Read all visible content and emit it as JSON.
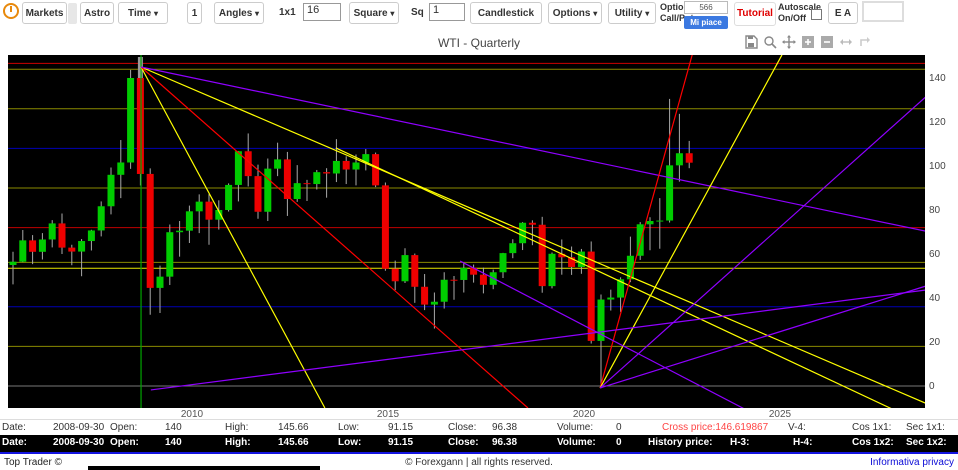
{
  "toolbar": {
    "markets": "Markets",
    "astro": "Astro",
    "time": "Time",
    "one": "1",
    "angles": "Angles",
    "one_by_one": "1x1",
    "square_input": "16",
    "square": "Square",
    "sq": "Sq",
    "sq_input": "1",
    "candlestick": "Candlestick",
    "options": "Options",
    "utility": "Utility",
    "option_page_line1": "Option Page",
    "option_page_line2": "Call/Put",
    "like_count": "566",
    "like_label": "Mi piace",
    "tutorial": "Tutorial",
    "autoscale_line1": "Autoscale",
    "autoscale_line2": "On/Off",
    "ea": "E A",
    "dropdown_arrow": "▾"
  },
  "titlebar": {
    "title": "WTI - Quarterly"
  },
  "modebar": {
    "icons": [
      "save",
      "zoom",
      "pan",
      "zoom-in",
      "zoom-out",
      "autoscale",
      "reset-axes"
    ]
  },
  "chart_data": {
    "type": "candlestick",
    "title": "WTI - Quarterly",
    "symbol": "WTI",
    "timeframe": "Quarterly",
    "background": "#000000",
    "up_color": "#00cc00",
    "down_color": "#ee0000",
    "wick_color": "#aaaaaa",
    "x_ticks": [
      2010,
      2015,
      2020,
      2025
    ],
    "y_ticks": [
      0,
      20,
      40,
      60,
      80,
      100,
      120,
      140
    ],
    "ylim": [
      -10,
      150.5
    ],
    "xlim_years": [
      2005.3,
      2028.7
    ],
    "selected": {
      "date": "2008-09-30",
      "open": 140,
      "high": 145.66,
      "low": 91.15,
      "close": 96.38,
      "volume": 0,
      "index": 13
    },
    "candles": [
      [
        "2005-06-30",
        55.0,
        61.0,
        46.2,
        56.5
      ],
      [
        "2005-09-30",
        56.5,
        70.9,
        56.3,
        66.2
      ],
      [
        "2005-12-31",
        66.2,
        68.6,
        55.4,
        61.0
      ],
      [
        "2006-03-31",
        61.0,
        69.5,
        57.5,
        66.6
      ],
      [
        "2006-06-30",
        66.6,
        75.4,
        63.0,
        73.9
      ],
      [
        "2006-09-30",
        73.9,
        78.4,
        60.0,
        62.9
      ],
      [
        "2006-12-31",
        62.9,
        64.2,
        54.9,
        61.1
      ],
      [
        "2007-03-31",
        61.1,
        66.8,
        49.9,
        65.9
      ],
      [
        "2007-06-30",
        65.9,
        71.0,
        61.6,
        70.7
      ],
      [
        "2007-09-30",
        70.7,
        83.9,
        68.0,
        81.7
      ],
      [
        "2007-12-31",
        81.7,
        99.3,
        78.0,
        96.0
      ],
      [
        "2008-03-31",
        96.0,
        111.8,
        85.4,
        101.6
      ],
      [
        "2008-06-30",
        101.6,
        143.7,
        98.7,
        140.0
      ],
      [
        "2008-09-30",
        140.0,
        145.66,
        91.15,
        96.38
      ],
      [
        "2008-12-31",
        96.4,
        98.9,
        32.4,
        44.6
      ],
      [
        "2009-03-31",
        44.6,
        54.7,
        33.2,
        49.7
      ],
      [
        "2009-06-30",
        49.7,
        73.4,
        45.9,
        69.9
      ],
      [
        "2009-09-30",
        69.9,
        75.0,
        58.8,
        70.6
      ],
      [
        "2009-12-31",
        70.6,
        82.0,
        65.0,
        79.4
      ],
      [
        "2010-03-31",
        79.4,
        87.1,
        69.5,
        83.8
      ],
      [
        "2010-06-30",
        83.8,
        87.2,
        64.2,
        75.6
      ],
      [
        "2010-09-30",
        75.6,
        84.4,
        71.1,
        80.0
      ],
      [
        "2010-12-31",
        80.0,
        92.1,
        79.3,
        91.4
      ],
      [
        "2011-03-31",
        91.4,
        106.8,
        83.9,
        106.7
      ],
      [
        "2011-06-30",
        106.7,
        114.8,
        90.7,
        95.4
      ],
      [
        "2011-09-30",
        95.4,
        100.6,
        76.0,
        79.2
      ],
      [
        "2011-12-31",
        79.2,
        103.4,
        75.0,
        98.8
      ],
      [
        "2012-03-31",
        98.8,
        110.6,
        95.4,
        103.0
      ],
      [
        "2012-06-30",
        103.0,
        106.4,
        77.3,
        85.0
      ],
      [
        "2012-09-30",
        85.0,
        100.4,
        83.7,
        92.2
      ],
      [
        "2012-12-31",
        92.2,
        93.7,
        84.1,
        91.8
      ],
      [
        "2013-03-31",
        91.8,
        98.2,
        89.3,
        97.2
      ],
      [
        "2013-06-30",
        97.2,
        99.0,
        85.6,
        96.6
      ],
      [
        "2013-09-30",
        96.6,
        112.2,
        92.7,
        102.3
      ],
      [
        "2013-12-31",
        102.3,
        104.4,
        91.8,
        98.4
      ],
      [
        "2014-03-31",
        98.4,
        105.2,
        91.2,
        101.6
      ],
      [
        "2014-06-30",
        101.6,
        107.7,
        98.0,
        105.4
      ],
      [
        "2014-09-30",
        105.4,
        106.1,
        90.4,
        91.2
      ],
      [
        "2014-12-31",
        91.2,
        92.5,
        52.4,
        53.3
      ],
      [
        "2015-03-31",
        53.3,
        57.0,
        43.6,
        47.6
      ],
      [
        "2015-06-30",
        47.6,
        62.6,
        46.8,
        59.5
      ],
      [
        "2015-09-30",
        59.5,
        60.2,
        37.8,
        45.1
      ],
      [
        "2015-12-31",
        45.1,
        50.9,
        34.5,
        37.0
      ],
      [
        "2016-03-31",
        37.0,
        42.5,
        26.1,
        38.3
      ],
      [
        "2016-06-30",
        38.3,
        51.7,
        35.2,
        48.3
      ],
      [
        "2016-09-30",
        48.3,
        50.0,
        39.2,
        48.2
      ],
      [
        "2016-12-31",
        48.2,
        56.2,
        42.5,
        53.7
      ],
      [
        "2017-03-31",
        53.7,
        55.2,
        47.0,
        50.6
      ],
      [
        "2017-06-30",
        50.6,
        53.8,
        42.1,
        46.0
      ],
      [
        "2017-09-30",
        46.0,
        52.9,
        44.0,
        51.7
      ],
      [
        "2017-12-31",
        51.7,
        60.5,
        49.1,
        60.4
      ],
      [
        "2018-03-31",
        60.4,
        66.7,
        58.1,
        64.9
      ],
      [
        "2018-06-30",
        64.9,
        74.5,
        61.8,
        74.2
      ],
      [
        "2018-09-30",
        74.2,
        75.3,
        64.0,
        73.3
      ],
      [
        "2018-12-31",
        73.3,
        76.9,
        42.4,
        45.4
      ],
      [
        "2019-03-31",
        45.4,
        60.7,
        44.4,
        60.1
      ],
      [
        "2019-06-30",
        60.1,
        66.6,
        50.6,
        58.5
      ],
      [
        "2019-09-30",
        58.5,
        63.4,
        50.5,
        54.1
      ],
      [
        "2019-12-31",
        54.1,
        62.3,
        51.0,
        61.1
      ],
      [
        "2020-03-31",
        61.1,
        65.7,
        19.3,
        20.5
      ],
      [
        "2020-06-30",
        20.5,
        41.6,
        -1.0,
        39.3
      ],
      [
        "2020-09-30",
        39.3,
        43.8,
        34.3,
        40.2
      ],
      [
        "2020-12-31",
        40.2,
        49.4,
        33.6,
        48.5
      ],
      [
        "2021-03-31",
        48.5,
        67.9,
        47.2,
        59.2
      ],
      [
        "2021-06-30",
        59.2,
        74.5,
        57.3,
        73.5
      ],
      [
        "2021-09-30",
        73.5,
        76.7,
        61.7,
        75.0
      ],
      [
        "2021-12-31",
        75.0,
        85.4,
        62.4,
        75.2
      ],
      [
        "2022-03-31",
        75.2,
        130.5,
        74.3,
        100.3
      ],
      [
        "2022-06-30",
        100.3,
        123.7,
        92.9,
        105.8
      ],
      [
        "2022-09-30",
        105.8,
        111.4,
        99.0,
        101.5
      ]
    ],
    "h_levels": [
      {
        "price": 146.62,
        "color": "#cc0000"
      },
      {
        "price": 144.0,
        "color": "#8a8a00"
      },
      {
        "price": 126.0,
        "color": "#8a8a00"
      },
      {
        "price": 108.0,
        "color": "#0000b4"
      },
      {
        "price": 90.0,
        "color": "#8a8a00"
      },
      {
        "price": 72.0,
        "color": "#c00000"
      },
      {
        "price": 56.2,
        "color": "#8a8a00"
      },
      {
        "price": 53.5,
        "color": "#e8e800"
      },
      {
        "price": 36.0,
        "color": "#0000b4"
      },
      {
        "price": 18.0,
        "color": "#8a8a00"
      },
      {
        "price": 0.0,
        "color": "#787878"
      }
    ],
    "v_lines": [
      {
        "year": 2008.7,
        "color": "#00a500"
      }
    ],
    "trend_lines": [
      {
        "x1": 2008.7,
        "p1": 145.0,
        "x2": 2013.39,
        "p2": -10.0,
        "color": "#ffff00"
      },
      {
        "x1": 2008.7,
        "p1": 145.0,
        "x2": 2029.0,
        "p2": -10.0,
        "color": "#ffff00"
      },
      {
        "x1": 2013.67,
        "p1": 108.2,
        "x2": 2029.54,
        "p2": -24.5,
        "color": "#ffff00"
      },
      {
        "x1": 2008.7,
        "p1": 145.0,
        "x2": 2018.57,
        "p2": -10.0,
        "color": "#ff0000"
      },
      {
        "x1": 2008.7,
        "p1": 145.0,
        "x2": 2029.54,
        "p2": 67.3,
        "color": "#8f00ff"
      },
      {
        "x1": 2020.41,
        "p1": -0.9,
        "x2": 2022.76,
        "p2": 150.5,
        "color": "#ff0000"
      },
      {
        "x1": 2020.41,
        "p1": -0.9,
        "x2": 2025.05,
        "p2": 150.5,
        "color": "#ffff00"
      },
      {
        "x1": 2020.41,
        "p1": -0.9,
        "x2": 2029.54,
        "p2": 144.5,
        "color": "#8f00ff"
      },
      {
        "x1": 2020.41,
        "p1": -0.9,
        "x2": 2029.54,
        "p2": 50.0,
        "color": "#8f00ff"
      },
      {
        "x1": 2008.95,
        "p1": -1.8,
        "x2": 2029.54,
        "p2": 45.5,
        "color": "#8f00ff"
      },
      {
        "x1": 2016.84,
        "p1": 56.8,
        "x2": 2024.49,
        "p2": -14.1,
        "color": "#8f00ff"
      }
    ]
  },
  "info_row_light": {
    "date_label": "Date:",
    "date": "2008-09-30",
    "open_label": "Open:",
    "open": "140",
    "high_label": "High:",
    "high": "145.66",
    "low_label": "Low:",
    "low": "91.15",
    "close_label": "Close:",
    "close": "96.38",
    "volume_label": "Volume:",
    "volume": "0",
    "cross_price": "Cross price:146.619867",
    "v4_label": "V-4:",
    "cos_label": "Cos 1x1:",
    "sec_label": "Sec 1x1:"
  },
  "info_row_dark": {
    "date_label": "Date:",
    "date": "2008-09-30",
    "open_label": "Open:",
    "open": "140",
    "high_label": "High:",
    "high": "145.66",
    "low_label": "Low:",
    "low": "91.15",
    "close_label": "Close:",
    "close": "96.38",
    "volume_label": "Volume:",
    "volume": "0",
    "history_label": "History price:",
    "h3_label": "H-3:",
    "h4_label": "H-4:",
    "cos_label": "Cos 1x2:",
    "sec_label": "Sec 1x2:"
  },
  "footer": {
    "left": "Top Trader ©",
    "center": "© Forexgann | all rights reserved.",
    "right": "Informativa privacy"
  }
}
